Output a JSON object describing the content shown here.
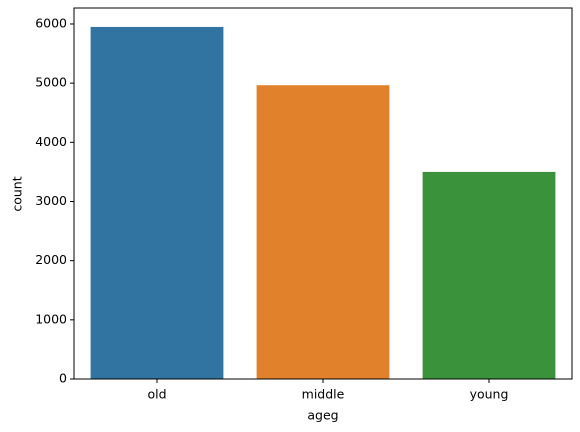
{
  "chart_data": {
    "type": "bar",
    "categories": [
      "old",
      "middle",
      "young"
    ],
    "values": [
      5950,
      4965,
      3500
    ],
    "colors": [
      "#3274a1",
      "#e1812c",
      "#3a923a"
    ],
    "xlabel": "ageg",
    "ylabel": "count",
    "ylim": [
      0,
      6270
    ],
    "yticks": [
      0,
      1000,
      2000,
      3000,
      4000,
      5000,
      6000
    ],
    "grid": false
  }
}
